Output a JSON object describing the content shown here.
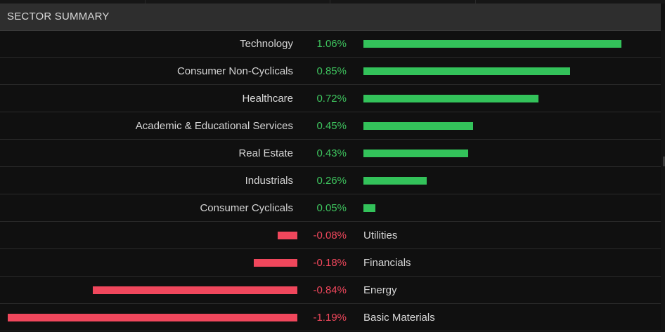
{
  "header": {
    "title": "SECTOR SUMMARY"
  },
  "sectors": [
    {
      "name": "Technology",
      "change": "1.06%",
      "value": 1.06
    },
    {
      "name": "Consumer Non-Cyclicals",
      "change": "0.85%",
      "value": 0.85
    },
    {
      "name": "Healthcare",
      "change": "0.72%",
      "value": 0.72
    },
    {
      "name": "Academic & Educational Services",
      "change": "0.45%",
      "value": 0.45
    },
    {
      "name": "Real Estate",
      "change": "0.43%",
      "value": 0.43
    },
    {
      "name": "Industrials",
      "change": "0.26%",
      "value": 0.26
    },
    {
      "name": "Consumer Cyclicals",
      "change": "0.05%",
      "value": 0.05
    },
    {
      "name": "Utilities",
      "change": "-0.08%",
      "value": -0.08
    },
    {
      "name": "Financials",
      "change": "-0.18%",
      "value": -0.18
    },
    {
      "name": "Energy",
      "change": "-0.84%",
      "value": -0.84
    },
    {
      "name": "Basic Materials",
      "change": "-1.19%",
      "value": -1.19
    }
  ],
  "colors": {
    "positive": "#33c25a",
    "negative": "#f0475c",
    "header_bg": "#2e2e2e",
    "panel_bg": "#101010"
  }
}
